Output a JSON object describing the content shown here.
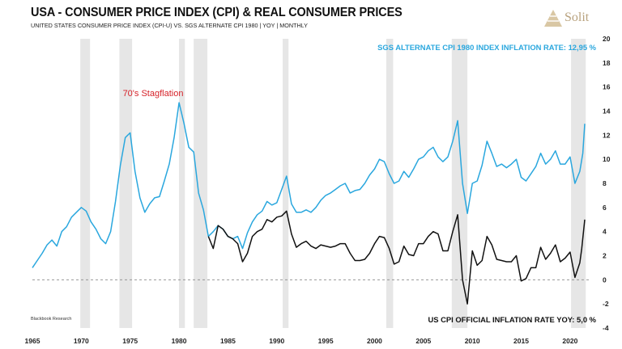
{
  "header": {
    "title": "USA - CONSUMER PRICE INDEX (CPI) & REAL CONSUMER PRICES",
    "subtitle": "UNITED STATES CONSUMER PRICE INDEX (CPI-U) VS. SGS ALTERNATE CPI 1980  | YOY | MONTHLY"
  },
  "logo": {
    "name": "Solit"
  },
  "colors": {
    "sgs": "#2aa7de",
    "cpi": "#111111",
    "recession": "#e6e6e6",
    "annotation": "#d6232a"
  },
  "chart_data": {
    "type": "line",
    "title": "USA - CONSUMER PRICE INDEX (CPI) & REAL CONSUMER PRICES",
    "x_range": [
      1965,
      2022
    ],
    "ylim": [
      -4,
      20
    ],
    "x_ticks": [
      "1965",
      "1970",
      "1975",
      "1980",
      "1985",
      "1990",
      "1995",
      "2000",
      "2005",
      "2010",
      "2015",
      "2020"
    ],
    "y_ticks": [
      "-4",
      "-2",
      "0",
      "2",
      "4",
      "6",
      "8",
      "10",
      "12",
      "14",
      "16",
      "18",
      "20"
    ],
    "recessions": [
      [
        1969.9,
        1970.9
      ],
      [
        1973.9,
        1975.2
      ],
      [
        1980.0,
        1980.6
      ],
      [
        1981.5,
        1982.9
      ],
      [
        1990.6,
        1991.2
      ],
      [
        2001.2,
        2001.9
      ],
      [
        2007.9,
        2009.5
      ],
      [
        2020.1,
        2021.6
      ]
    ],
    "zero_line": "dashed",
    "annotations": {
      "sgs_label": "SGS ALTERNATE CPI 1980 INDEX INFLATION RATE: 12,95 %",
      "cpi_label": "US CPI OFFICIAL INFLATION RATE YOY:  5,0 %",
      "stagflation": "70's Stagflation",
      "source": "Blackbook  Research"
    },
    "series": [
      {
        "name": "SGS Alternate CPI 1980",
        "color": "#2aa7de",
        "points": [
          [
            1965.0,
            1.0
          ],
          [
            1965.5,
            1.6
          ],
          [
            1966.0,
            2.2
          ],
          [
            1966.5,
            2.9
          ],
          [
            1967.0,
            3.3
          ],
          [
            1967.5,
            2.8
          ],
          [
            1968.0,
            4.0
          ],
          [
            1968.5,
            4.4
          ],
          [
            1969.0,
            5.2
          ],
          [
            1969.5,
            5.6
          ],
          [
            1970.0,
            6.0
          ],
          [
            1970.5,
            5.7
          ],
          [
            1971.0,
            4.8
          ],
          [
            1971.5,
            4.2
          ],
          [
            1972.0,
            3.4
          ],
          [
            1972.5,
            3.0
          ],
          [
            1973.0,
            4.0
          ],
          [
            1973.5,
            6.5
          ],
          [
            1974.0,
            9.5
          ],
          [
            1974.5,
            11.8
          ],
          [
            1975.0,
            12.2
          ],
          [
            1975.5,
            9.0
          ],
          [
            1976.0,
            6.8
          ],
          [
            1976.5,
            5.6
          ],
          [
            1977.0,
            6.3
          ],
          [
            1977.5,
            6.8
          ],
          [
            1978.0,
            6.9
          ],
          [
            1978.5,
            8.2
          ],
          [
            1979.0,
            9.6
          ],
          [
            1979.5,
            11.8
          ],
          [
            1980.0,
            14.7
          ],
          [
            1980.5,
            13.0
          ],
          [
            1981.0,
            11.0
          ],
          [
            1981.5,
            10.6
          ],
          [
            1982.0,
            7.2
          ],
          [
            1982.5,
            5.8
          ],
          [
            1983.0,
            3.6
          ],
          [
            1983.5,
            4.0
          ],
          [
            1984.0,
            4.5
          ],
          [
            1984.5,
            4.2
          ],
          [
            1985.0,
            3.6
          ],
          [
            1985.5,
            3.4
          ],
          [
            1986.0,
            3.6
          ],
          [
            1986.5,
            2.6
          ],
          [
            1987.0,
            3.9
          ],
          [
            1987.5,
            4.8
          ],
          [
            1988.0,
            5.4
          ],
          [
            1988.5,
            5.7
          ],
          [
            1989.0,
            6.5
          ],
          [
            1989.5,
            6.2
          ],
          [
            1990.0,
            6.4
          ],
          [
            1990.5,
            7.5
          ],
          [
            1991.0,
            8.6
          ],
          [
            1991.5,
            6.3
          ],
          [
            1992.0,
            5.6
          ],
          [
            1992.5,
            5.6
          ],
          [
            1993.0,
            5.8
          ],
          [
            1993.5,
            5.6
          ],
          [
            1994.0,
            6.0
          ],
          [
            1994.5,
            6.6
          ],
          [
            1995.0,
            7.0
          ],
          [
            1995.5,
            7.2
          ],
          [
            1996.0,
            7.5
          ],
          [
            1996.5,
            7.8
          ],
          [
            1997.0,
            8.0
          ],
          [
            1997.5,
            7.2
          ],
          [
            1998.0,
            7.4
          ],
          [
            1998.5,
            7.5
          ],
          [
            1999.0,
            8.0
          ],
          [
            1999.5,
            8.7
          ],
          [
            2000.0,
            9.2
          ],
          [
            2000.5,
            10.0
          ],
          [
            2001.0,
            9.8
          ],
          [
            2001.5,
            8.8
          ],
          [
            2002.0,
            8.0
          ],
          [
            2002.5,
            8.2
          ],
          [
            2003.0,
            9.0
          ],
          [
            2003.5,
            8.5
          ],
          [
            2004.0,
            9.2
          ],
          [
            2004.5,
            10.0
          ],
          [
            2005.0,
            10.2
          ],
          [
            2005.5,
            10.7
          ],
          [
            2006.0,
            11.0
          ],
          [
            2006.5,
            10.2
          ],
          [
            2007.0,
            9.8
          ],
          [
            2007.5,
            10.2
          ],
          [
            2008.0,
            11.5
          ],
          [
            2008.5,
            13.2
          ],
          [
            2009.0,
            8.0
          ],
          [
            2009.5,
            5.5
          ],
          [
            2010.0,
            8.0
          ],
          [
            2010.5,
            8.2
          ],
          [
            2011.0,
            9.5
          ],
          [
            2011.5,
            11.5
          ],
          [
            2012.0,
            10.5
          ],
          [
            2012.5,
            9.4
          ],
          [
            2013.0,
            9.6
          ],
          [
            2013.5,
            9.3
          ],
          [
            2014.0,
            9.6
          ],
          [
            2014.5,
            10.0
          ],
          [
            2015.0,
            8.5
          ],
          [
            2015.5,
            8.2
          ],
          [
            2016.0,
            8.8
          ],
          [
            2016.5,
            9.4
          ],
          [
            2017.0,
            10.5
          ],
          [
            2017.5,
            9.6
          ],
          [
            2018.0,
            10.0
          ],
          [
            2018.5,
            10.7
          ],
          [
            2019.0,
            9.6
          ],
          [
            2019.5,
            9.6
          ],
          [
            2020.0,
            10.2
          ],
          [
            2020.5,
            8.0
          ],
          [
            2021.0,
            9.0
          ],
          [
            2021.3,
            10.5
          ],
          [
            2021.5,
            12.95
          ]
        ]
      },
      {
        "name": "US CPI Official",
        "color": "#111111",
        "points": [
          [
            1983.0,
            3.6
          ],
          [
            1983.5,
            2.6
          ],
          [
            1984.0,
            4.5
          ],
          [
            1984.5,
            4.2
          ],
          [
            1985.0,
            3.6
          ],
          [
            1985.5,
            3.4
          ],
          [
            1986.0,
            3.0
          ],
          [
            1986.5,
            1.5
          ],
          [
            1987.0,
            2.2
          ],
          [
            1987.5,
            3.6
          ],
          [
            1988.0,
            4.0
          ],
          [
            1988.5,
            4.2
          ],
          [
            1989.0,
            5.0
          ],
          [
            1989.5,
            4.8
          ],
          [
            1990.0,
            5.2
          ],
          [
            1990.5,
            5.3
          ],
          [
            1991.0,
            5.7
          ],
          [
            1991.5,
            3.8
          ],
          [
            1992.0,
            2.7
          ],
          [
            1992.5,
            3.0
          ],
          [
            1993.0,
            3.2
          ],
          [
            1993.5,
            2.8
          ],
          [
            1994.0,
            2.6
          ],
          [
            1994.5,
            2.9
          ],
          [
            1995.0,
            2.8
          ],
          [
            1995.5,
            2.7
          ],
          [
            1996.0,
            2.8
          ],
          [
            1996.5,
            3.0
          ],
          [
            1997.0,
            3.0
          ],
          [
            1997.5,
            2.2
          ],
          [
            1998.0,
            1.6
          ],
          [
            1998.5,
            1.6
          ],
          [
            1999.0,
            1.7
          ],
          [
            1999.5,
            2.2
          ],
          [
            2000.0,
            3.0
          ],
          [
            2000.5,
            3.6
          ],
          [
            2001.0,
            3.5
          ],
          [
            2001.5,
            2.6
          ],
          [
            2002.0,
            1.3
          ],
          [
            2002.5,
            1.5
          ],
          [
            2003.0,
            2.8
          ],
          [
            2003.5,
            2.1
          ],
          [
            2004.0,
            2.0
          ],
          [
            2004.5,
            3.0
          ],
          [
            2005.0,
            3.0
          ],
          [
            2005.5,
            3.6
          ],
          [
            2006.0,
            4.0
          ],
          [
            2006.5,
            3.8
          ],
          [
            2007.0,
            2.4
          ],
          [
            2007.5,
            2.4
          ],
          [
            2008.0,
            4.0
          ],
          [
            2008.5,
            5.4
          ],
          [
            2009.0,
            0.0
          ],
          [
            2009.5,
            -2.0
          ],
          [
            2010.0,
            2.4
          ],
          [
            2010.5,
            1.2
          ],
          [
            2011.0,
            1.6
          ],
          [
            2011.5,
            3.6
          ],
          [
            2012.0,
            2.9
          ],
          [
            2012.5,
            1.7
          ],
          [
            2013.0,
            1.6
          ],
          [
            2013.5,
            1.5
          ],
          [
            2014.0,
            1.5
          ],
          [
            2014.5,
            2.0
          ],
          [
            2015.0,
            -0.1
          ],
          [
            2015.5,
            0.1
          ],
          [
            2016.0,
            1.0
          ],
          [
            2016.5,
            1.0
          ],
          [
            2017.0,
            2.7
          ],
          [
            2017.5,
            1.7
          ],
          [
            2018.0,
            2.2
          ],
          [
            2018.5,
            2.9
          ],
          [
            2019.0,
            1.5
          ],
          [
            2019.5,
            1.8
          ],
          [
            2020.0,
            2.3
          ],
          [
            2020.5,
            0.2
          ],
          [
            2021.0,
            1.4
          ],
          [
            2021.2,
            2.6
          ],
          [
            2021.5,
            5.0
          ]
        ]
      }
    ]
  }
}
